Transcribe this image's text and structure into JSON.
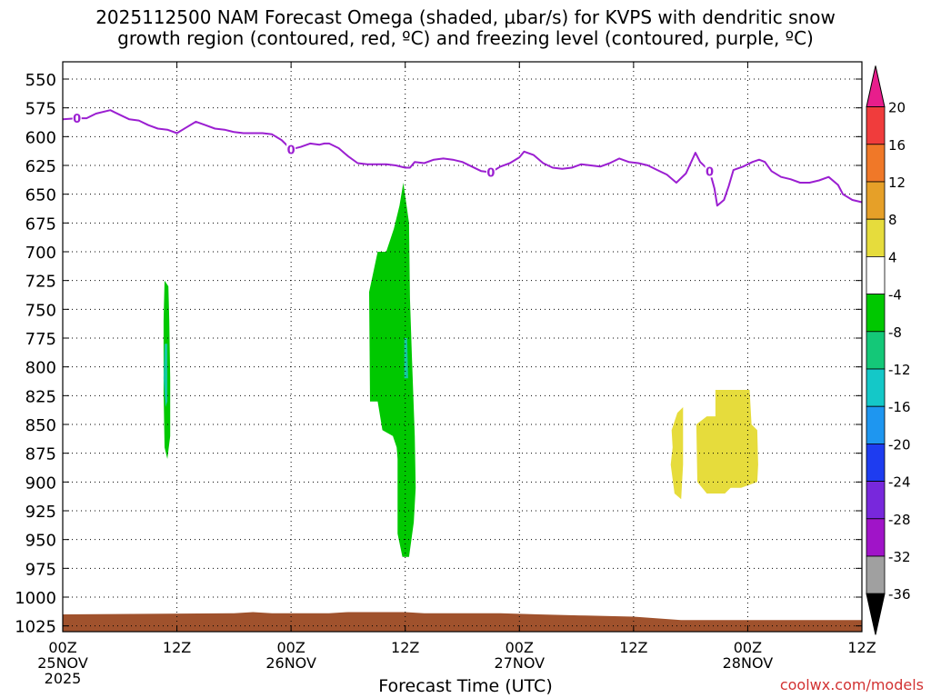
{
  "title_line1": "2025112500 NAM Forecast Omega (shaded, µbar/s) for KVPS with dendritic snow",
  "title_line2": "growth region (contoured, red, ºC) and freezing level (contoured, purple, ºC)",
  "credit": "coolwx.com/models",
  "chart_data": {
    "type": "time-height contour",
    "xlabel": "Forecast Time (UTC)",
    "x_ticks": [
      {
        "h": 0,
        "lines": [
          "00Z",
          "25NOV",
          "2025"
        ]
      },
      {
        "h": 12,
        "lines": [
          "12Z"
        ]
      },
      {
        "h": 24,
        "lines": [
          "00Z",
          "26NOV"
        ]
      },
      {
        "h": 36,
        "lines": [
          "12Z"
        ]
      },
      {
        "h": 48,
        "lines": [
          "00Z",
          "27NOV"
        ]
      },
      {
        "h": 60,
        "lines": [
          "12Z"
        ]
      },
      {
        "h": 72,
        "lines": [
          "00Z",
          "28NOV"
        ]
      },
      {
        "h": 84,
        "lines": [
          "12Z"
        ]
      }
    ],
    "xlim": [
      0,
      84
    ],
    "y_ticks": [
      550,
      575,
      600,
      625,
      650,
      675,
      700,
      725,
      750,
      775,
      800,
      825,
      850,
      875,
      900,
      925,
      950,
      975,
      1000,
      1025
    ],
    "ylim": [
      535,
      1030
    ],
    "grid": true,
    "colorbar": {
      "labels": [
        20,
        16,
        12,
        8,
        4,
        -4,
        -8,
        -12,
        -16,
        -20,
        -24,
        -28,
        -32,
        -36
      ],
      "colors": [
        "#e81e8c",
        "#f03c3c",
        "#f07828",
        "#e6a028",
        "#e6dc3c",
        "#ffffff",
        "#00c800",
        "#14c878",
        "#14c8c8",
        "#1e96f0",
        "#1e3cf0",
        "#7828dc",
        "#a014c8",
        "#a0a0a0",
        "#000000"
      ]
    },
    "freezing_level": {
      "name": "0",
      "color": "#9b1fd1",
      "label_hours": [
        1.5,
        24,
        45,
        68
      ],
      "points": [
        [
          0,
          585
        ],
        [
          1.5,
          584
        ],
        [
          2.5,
          584
        ],
        [
          3.5,
          580
        ],
        [
          5,
          577
        ],
        [
          6,
          581
        ],
        [
          7,
          585
        ],
        [
          8,
          586
        ],
        [
          9,
          590
        ],
        [
          10,
          593
        ],
        [
          11,
          594
        ],
        [
          12,
          597
        ],
        [
          13,
          592
        ],
        [
          14,
          587
        ],
        [
          15,
          590
        ],
        [
          16,
          593
        ],
        [
          17,
          594
        ],
        [
          18,
          596
        ],
        [
          19,
          597
        ],
        [
          21,
          597
        ],
        [
          22,
          598
        ],
        [
          23,
          603
        ],
        [
          24,
          611
        ],
        [
          25,
          609
        ],
        [
          26,
          606
        ],
        [
          27,
          607
        ],
        [
          27.5,
          606
        ],
        [
          28,
          606
        ],
        [
          29,
          610
        ],
        [
          30,
          617
        ],
        [
          31,
          623
        ],
        [
          32,
          624
        ],
        [
          34,
          624
        ],
        [
          35,
          625
        ],
        [
          36,
          627
        ],
        [
          36.5,
          627
        ],
        [
          37,
          622
        ],
        [
          38,
          623
        ],
        [
          39,
          620
        ],
        [
          40,
          619
        ],
        [
          41,
          620
        ],
        [
          42,
          622
        ],
        [
          43,
          626
        ],
        [
          44,
          630
        ],
        [
          45,
          631
        ],
        [
          46,
          626
        ],
        [
          47,
          623
        ],
        [
          48,
          618
        ],
        [
          48.5,
          613
        ],
        [
          49.5,
          616
        ],
        [
          50.5,
          623
        ],
        [
          51.5,
          627
        ],
        [
          52.5,
          628
        ],
        [
          53.5,
          627
        ],
        [
          54.5,
          624
        ],
        [
          55.5,
          625
        ],
        [
          56.5,
          626
        ],
        [
          57.5,
          623
        ],
        [
          58.5,
          619
        ],
        [
          59.5,
          622
        ],
        [
          60.5,
          623
        ],
        [
          61.5,
          625
        ],
        [
          62.5,
          629
        ],
        [
          63.5,
          633
        ],
        [
          64.5,
          640
        ],
        [
          65.5,
          632
        ],
        [
          66.5,
          614
        ],
        [
          67,
          622
        ],
        [
          68,
          630
        ],
        [
          68.5,
          645
        ],
        [
          68.8,
          660
        ],
        [
          69.5,
          655
        ],
        [
          70,
          643
        ],
        [
          70.5,
          629
        ],
        [
          71.5,
          626
        ],
        [
          72.5,
          622
        ],
        [
          73.2,
          620
        ],
        [
          73.8,
          622
        ],
        [
          74.5,
          630
        ],
        [
          75.5,
          635
        ],
        [
          76.5,
          637
        ],
        [
          77.5,
          640
        ],
        [
          78.5,
          640
        ],
        [
          79.5,
          638
        ],
        [
          80.5,
          635
        ],
        [
          81.5,
          642
        ],
        [
          82,
          650
        ],
        [
          83,
          655
        ],
        [
          84,
          657
        ]
      ]
    },
    "omega_regions": [
      {
        "name": "-8 to -4",
        "color": "#00c800",
        "points": [
          [
            10.7,
            725
          ],
          [
            11.1,
            730
          ],
          [
            11.2,
            760
          ],
          [
            11.3,
            810
          ],
          [
            11.3,
            860
          ],
          [
            11.0,
            880
          ],
          [
            10.7,
            870
          ],
          [
            10.6,
            820
          ],
          [
            10.6,
            760
          ]
        ]
      },
      {
        "name": "-12 to -8",
        "color": "#14c8a0",
        "points": [
          [
            10.7,
            780
          ],
          [
            11.0,
            780
          ],
          [
            11.0,
            830
          ],
          [
            10.8,
            835
          ],
          [
            10.6,
            810
          ]
        ]
      },
      {
        "name": "-8 to -4",
        "color": "#00c800",
        "points": [
          [
            35.8,
            640
          ],
          [
            36.4,
            675
          ],
          [
            36.5,
            740
          ],
          [
            36.7,
            790
          ],
          [
            37.0,
            860
          ],
          [
            37.1,
            905
          ],
          [
            36.9,
            935
          ],
          [
            36.4,
            965
          ],
          [
            35.7,
            965
          ],
          [
            35.2,
            945
          ],
          [
            35.2,
            880
          ],
          [
            35.1,
            870
          ],
          [
            34.7,
            860
          ],
          [
            33.6,
            855
          ],
          [
            33.1,
            830
          ],
          [
            32.3,
            830
          ],
          [
            32.2,
            735
          ],
          [
            33.1,
            700
          ],
          [
            34.0,
            700
          ],
          [
            34.8,
            680
          ],
          [
            35.4,
            660
          ]
        ]
      },
      {
        "name": "-12 to -8",
        "color": "#14c8a0",
        "points": [
          [
            35.9,
            775
          ],
          [
            36.2,
            775
          ],
          [
            36.3,
            810
          ],
          [
            35.9,
            810
          ]
        ]
      },
      {
        "name": "4 to 8",
        "color": "#e6dc3c",
        "points": [
          [
            64.0,
            855
          ],
          [
            64.6,
            840
          ],
          [
            65.2,
            835
          ],
          [
            65.2,
            885
          ],
          [
            65.0,
            915
          ],
          [
            64.3,
            910
          ],
          [
            63.9,
            885
          ],
          [
            64.1,
            870
          ]
        ]
      },
      {
        "name": "4 to 8",
        "color": "#e6dc3c",
        "points": [
          [
            68.6,
            820
          ],
          [
            72.2,
            820
          ],
          [
            72.4,
            850
          ],
          [
            73.0,
            855
          ],
          [
            73.1,
            885
          ],
          [
            73.0,
            900
          ],
          [
            71.3,
            905
          ],
          [
            70.2,
            905
          ],
          [
            69.6,
            910
          ],
          [
            67.7,
            910
          ],
          [
            66.7,
            900
          ],
          [
            66.6,
            850
          ],
          [
            67.7,
            843
          ],
          [
            68.6,
            843
          ]
        ]
      }
    ],
    "terrain": {
      "name": "surface",
      "color": "#a0522d",
      "points": [
        [
          0,
          1015
        ],
        [
          18,
          1014
        ],
        [
          20,
          1013
        ],
        [
          22,
          1014
        ],
        [
          28,
          1014
        ],
        [
          30,
          1013
        ],
        [
          36,
          1013
        ],
        [
          38,
          1014
        ],
        [
          46,
          1014
        ],
        [
          50,
          1015
        ],
        [
          55,
          1016
        ],
        [
          60,
          1017
        ],
        [
          65,
          1020
        ],
        [
          84,
          1020
        ]
      ]
    }
  }
}
